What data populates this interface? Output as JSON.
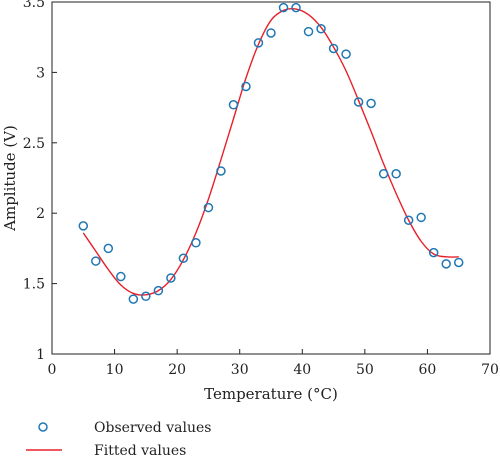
{
  "chart_data": {
    "type": "scatter",
    "xlabel": "Temperature (°C)",
    "ylabel": "Amplitude (V)",
    "xlim": [
      0,
      70
    ],
    "ylim": [
      1,
      3.5
    ],
    "xticks": [
      0,
      10,
      20,
      30,
      40,
      50,
      60,
      70
    ],
    "yticks": [
      1,
      1.5,
      2,
      2.5,
      3,
      3.5
    ],
    "yticklabels": [
      "1",
      "1.5",
      "2",
      "2.5",
      "3",
      "3.5"
    ],
    "grid": false,
    "legend_position": "bottom-left, below plot",
    "series": [
      {
        "name": "Observed values",
        "kind": "scatter",
        "marker": "open-circle",
        "color": "#1f77b4",
        "x": [
          5,
          7,
          9,
          11,
          13,
          15,
          17,
          19,
          21,
          23,
          25,
          27,
          29,
          31,
          33,
          35,
          37,
          39,
          41,
          43,
          45,
          47,
          49,
          51,
          53,
          55,
          57,
          59,
          61,
          63,
          65
        ],
        "y": [
          1.91,
          1.66,
          1.75,
          1.55,
          1.39,
          1.41,
          1.45,
          1.54,
          1.68,
          1.79,
          2.04,
          2.3,
          2.77,
          2.9,
          3.21,
          3.28,
          3.46,
          3.46,
          3.29,
          3.31,
          3.17,
          3.13,
          2.79,
          2.78,
          2.28,
          2.28,
          1.95,
          1.97,
          1.72,
          1.64,
          1.65
        ]
      },
      {
        "name": "Fitted values",
        "kind": "line",
        "color": "#e8202a",
        "x": [
          5,
          7,
          9,
          11,
          13,
          15,
          17,
          19,
          21,
          23,
          25,
          27,
          29,
          31,
          33,
          35,
          37,
          39,
          41,
          43,
          45,
          47,
          49,
          51,
          53,
          55,
          57,
          59,
          61,
          63,
          65
        ],
        "y": [
          1.86,
          1.73,
          1.6,
          1.49,
          1.43,
          1.42,
          1.45,
          1.53,
          1.67,
          1.86,
          2.1,
          2.38,
          2.67,
          2.96,
          3.2,
          3.37,
          3.44,
          3.45,
          3.41,
          3.32,
          3.18,
          3.01,
          2.8,
          2.58,
          2.35,
          2.14,
          1.95,
          1.8,
          1.71,
          1.69,
          1.69
        ]
      }
    ]
  }
}
